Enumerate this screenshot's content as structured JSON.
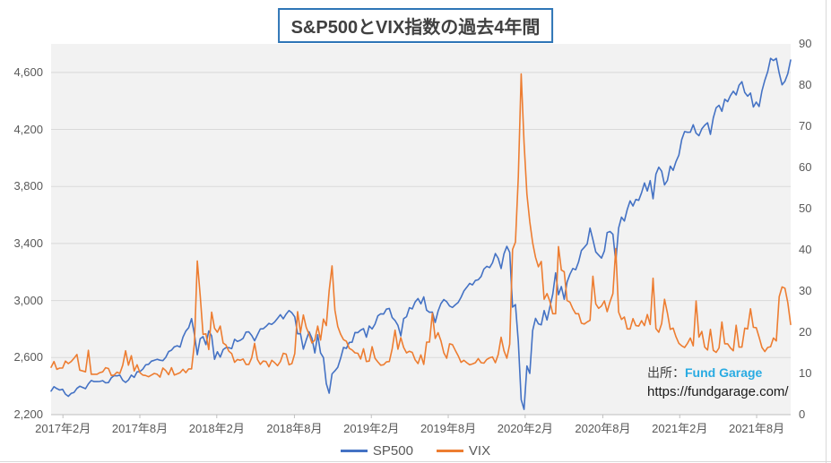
{
  "title": {
    "text": "S&P500とVIX指数の過去4年間",
    "border_color": "#2E75B6",
    "text_color": "#404040"
  },
  "legend": {
    "items": [
      {
        "label": "SP500",
        "color": "#4472C4"
      },
      {
        "label": "VIX",
        "color": "#ED7D31"
      }
    ]
  },
  "source": {
    "prefix": "出所：",
    "name": "Fund Garage",
    "name_color": "#29ABE2",
    "url": "https://fundgarage.com/"
  },
  "chart_data": {
    "type": "line",
    "title": "S&P500とVIX指数の過去4年間",
    "plot": {
      "bg": "#F2F2F2",
      "gridline_color": "#D9D9D9",
      "axis_line_color": "#BFBFBF",
      "grid": "horizontal-only"
    },
    "left_axis": {
      "min": 2200,
      "max": 4800,
      "tick_step": 400,
      "tick_values": [
        2200,
        2600,
        3000,
        3400,
        3800,
        4200,
        4600
      ],
      "tick_labels": [
        "2,200",
        "2,600",
        "3,000",
        "3,400",
        "3,800",
        "4,200",
        "4,600"
      ]
    },
    "right_axis": {
      "min": 0,
      "max": 90,
      "tick_step": 10,
      "tick_values": [
        0,
        10,
        20,
        30,
        40,
        50,
        60,
        70,
        80,
        90
      ],
      "tick_labels": [
        "0",
        "10",
        "20",
        "30",
        "40",
        "50",
        "60",
        "70",
        "80",
        "90"
      ]
    },
    "x_axis": {
      "ticks": [
        {
          "label": "2017年2月",
          "pos": 0.016
        },
        {
          "label": "2017年8月",
          "pos": 0.12
        },
        {
          "label": "2018年2月",
          "pos": 0.224
        },
        {
          "label": "2018年8月",
          "pos": 0.329
        },
        {
          "label": "2019年2月",
          "pos": 0.433
        },
        {
          "label": "2019年8月",
          "pos": 0.537
        },
        {
          "label": "2020年2月",
          "pos": 0.641
        },
        {
          "label": "2020年8月",
          "pos": 0.746
        },
        {
          "label": "2021年2月",
          "pos": 0.85
        },
        {
          "label": "2021年8月",
          "pos": 0.954
        }
      ]
    },
    "series": [
      {
        "name": "SP500",
        "color": "#4472C4",
        "axis": "left",
        "values": [
          2365,
          2396,
          2383,
          2373,
          2378,
          2344,
          2329,
          2349,
          2356,
          2384,
          2399,
          2391,
          2382,
          2416,
          2439,
          2432,
          2432,
          2433,
          2438,
          2423,
          2425,
          2459,
          2473,
          2472,
          2477,
          2441,
          2426,
          2443,
          2477,
          2461,
          2500,
          2502,
          2519,
          2549,
          2553,
          2575,
          2581,
          2588,
          2582,
          2579,
          2602,
          2642,
          2652,
          2676,
          2683,
          2674,
          2743,
          2786,
          2810,
          2873,
          2762,
          2620,
          2732,
          2747,
          2691,
          2787,
          2752,
          2588,
          2641,
          2604,
          2656,
          2670,
          2670,
          2663,
          2728,
          2713,
          2721,
          2735,
          2779,
          2780,
          2755,
          2718,
          2760,
          2801,
          2802,
          2819,
          2840,
          2833,
          2850,
          2875,
          2901,
          2872,
          2905,
          2930,
          2914,
          2886,
          2767,
          2768,
          2659,
          2723,
          2781,
          2736,
          2633,
          2760,
          2633,
          2600,
          2417,
          2351,
          2486,
          2507,
          2532,
          2596,
          2671,
          2665,
          2706,
          2708,
          2776,
          2775,
          2793,
          2803,
          2743,
          2822,
          2801,
          2834,
          2893,
          2907,
          2905,
          2940,
          2945,
          2881,
          2860,
          2826,
          2752,
          2873,
          2887,
          2950,
          2942,
          2990,
          3014,
          2977,
          3026,
          2932,
          2918,
          2919,
          2847,
          2926,
          2979,
          3007,
          2992,
          2962,
          2952,
          2970,
          2986,
          3023,
          3067,
          3093,
          3120,
          3110,
          3141,
          3146,
          3169,
          3221,
          3240,
          3231,
          3265,
          3330,
          3296,
          3225,
          3328,
          3380,
          3338,
          2954,
          2972,
          2711,
          2305,
          2237,
          2541,
          2489,
          2790,
          2875,
          2837,
          2830,
          2930,
          2864,
          2955,
          3044,
          3194,
          3041,
          3098,
          3009,
          3130,
          3185,
          3225,
          3216,
          3271,
          3351,
          3373,
          3397,
          3508,
          3427,
          3341,
          3319,
          3298,
          3348,
          3477,
          3484,
          3465,
          3270,
          3509,
          3585,
          3558,
          3638,
          3699,
          3663,
          3709,
          3703,
          3756,
          3825,
          3768,
          3841,
          3714,
          3887,
          3935,
          3907,
          3811,
          3842,
          3943,
          3913,
          3975,
          4020,
          4129,
          4185,
          4180,
          4181,
          4233,
          4174,
          4156,
          4204,
          4229,
          4247,
          4166,
          4281,
          4352,
          4369,
          4327,
          4412,
          4395,
          4437,
          4468,
          4442,
          4510,
          4535,
          4459,
          4433,
          4455,
          4357,
          4392,
          4361,
          4471,
          4545,
          4605,
          4698,
          4683,
          4698,
          4595,
          4513,
          4538,
          4591,
          4687
        ]
      },
      {
        "name": "VIX",
        "color": "#ED7D31",
        "axis": "right",
        "values": [
          11.5,
          12.9,
          11.0,
          11.3,
          11.3,
          13.0,
          12.4,
          12.9,
          13.7,
          14.6,
          10.8,
          10.6,
          10.4,
          15.6,
          9.8,
          9.8,
          9.8,
          10.2,
          10.4,
          11.4,
          11.2,
          9.5,
          9.6,
          10.3,
          10.0,
          12.0,
          15.5,
          12.0,
          14.3,
          10.6,
          12.1,
          10.2,
          9.6,
          9.5,
          9.2,
          9.6,
          10.0,
          9.8,
          9.1,
          11.3,
          10.7,
          9.7,
          11.4,
          9.6,
          9.9,
          10.2,
          11.0,
          10.2,
          11.1,
          11.1,
          17.3,
          37.3,
          29.0,
          19.5,
          19.6,
          15.8,
          24.9,
          21.0,
          20.0,
          21.5,
          17.4,
          16.9,
          15.4,
          14.8,
          12.7,
          13.4,
          13.2,
          13.5,
          12.2,
          12.2,
          13.8,
          17.3,
          13.4,
          12.2,
          13.0,
          12.9,
          11.6,
          13.2,
          12.6,
          11.9,
          12.9,
          14.9,
          14.7,
          12.1,
          12.4,
          14.8,
          25.0,
          19.9,
          24.2,
          21.2,
          19.5,
          17.4,
          18.1,
          21.5,
          18.1,
          23.2,
          21.6,
          30.1,
          36.1,
          25.4,
          21.4,
          19.5,
          18.2,
          17.8,
          16.1,
          15.7,
          15.0,
          14.9,
          13.5,
          16.0,
          12.9,
          13.0,
          16.5,
          13.7,
          12.8,
          12.0,
          12.1,
          12.8,
          12.9,
          16.0,
          20.5,
          15.9,
          18.7,
          16.3,
          15.0,
          15.4,
          15.1,
          13.3,
          12.4,
          14.5,
          12.2,
          17.6,
          17.6,
          24.6,
          18.5,
          19.9,
          17.9,
          15.0,
          13.7,
          17.2,
          17.0,
          15.6,
          14.3,
          12.7,
          13.2,
          12.6,
          12.1,
          12.3,
          12.6,
          13.6,
          12.6,
          12.5,
          13.4,
          13.8,
          14.0,
          12.6,
          14.6,
          18.8,
          15.5,
          13.7,
          17.1,
          40.1,
          41.9,
          57.8,
          82.7,
          66.0,
          53.5,
          46.8,
          41.7,
          38.2,
          35.9,
          37.2,
          28.0,
          29.4,
          27.5,
          24.5,
          24.5,
          40.8,
          35.1,
          34.7,
          27.7,
          27.3,
          25.7,
          24.5,
          24.5,
          22.2,
          22.0,
          22.5,
          22.9,
          33.6,
          26.9,
          25.8,
          26.4,
          27.6,
          25.0,
          27.4,
          29.4,
          40.3,
          24.9,
          23.1,
          23.7,
          20.8,
          20.8,
          23.3,
          21.6,
          21.5,
          22.8,
          21.6,
          24.3,
          21.9,
          33.1,
          20.9,
          20.0,
          22.1,
          28.0,
          24.7,
          20.7,
          21.0,
          18.9,
          17.3,
          16.7,
          16.3,
          17.3,
          18.6,
          16.7,
          27.6,
          18.8,
          20.2,
          16.4,
          15.7,
          20.7,
          15.6,
          15.1,
          16.2,
          22.5,
          17.2,
          17.2,
          16.2,
          15.5,
          21.7,
          16.4,
          16.4,
          21.0,
          20.8,
          25.7,
          21.2,
          21.1,
          18.8,
          16.3,
          15.3,
          16.3,
          16.5,
          18.6,
          17.9,
          28.6,
          31.0,
          30.7,
          27.2,
          21.9
        ]
      }
    ]
  }
}
